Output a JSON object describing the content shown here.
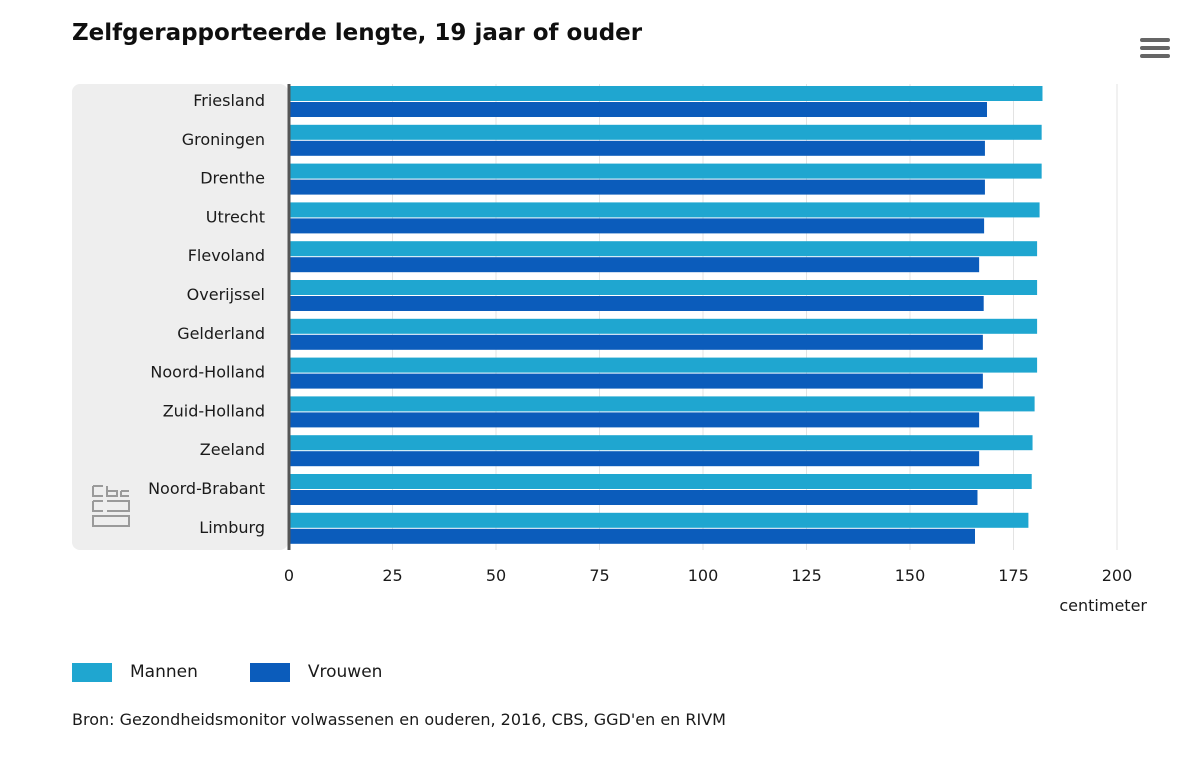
{
  "title": "Zelfgerapporteerde lengte, 19 jaar of ouder",
  "menu_icon": "hamburger-menu-icon",
  "logo_icon": "cbs-logo-icon",
  "source": "Bron: Gezondheidsmonitor volwassenen en ouderen, 2016, CBS, GGD'en en RIVM",
  "colors": {
    "mannen": "#1fa6d0",
    "vrouwen": "#0b5cbb",
    "plot_band": "#eeeeee",
    "axis": "#555555",
    "grid": "#e3e3e3"
  },
  "chart_data": {
    "type": "bar",
    "orientation": "horizontal",
    "categories": [
      "Friesland",
      "Groningen",
      "Drenthe",
      "Utrecht",
      "Flevoland",
      "Overijssel",
      "Gelderland",
      "Noord-Holland",
      "Zuid-Holland",
      "Zeeland",
      "Noord-Brabant",
      "Limburg"
    ],
    "series": [
      {
        "name": "Mannen",
        "values": [
          182.0,
          181.8,
          181.8,
          181.3,
          180.7,
          180.7,
          180.7,
          180.7,
          180.1,
          179.6,
          179.4,
          178.6
        ]
      },
      {
        "name": "Vrouwen",
        "values": [
          168.6,
          168.1,
          168.1,
          167.9,
          166.7,
          167.8,
          167.6,
          167.6,
          166.7,
          166.7,
          166.3,
          165.7
        ]
      }
    ],
    "xlabel": "centimeter",
    "xlim": [
      0,
      200
    ],
    "xticks": [
      "0",
      "25",
      "50",
      "75",
      "100",
      "125",
      "150",
      "175",
      "200"
    ],
    "grid": true,
    "legend_position": "bottom-left"
  }
}
